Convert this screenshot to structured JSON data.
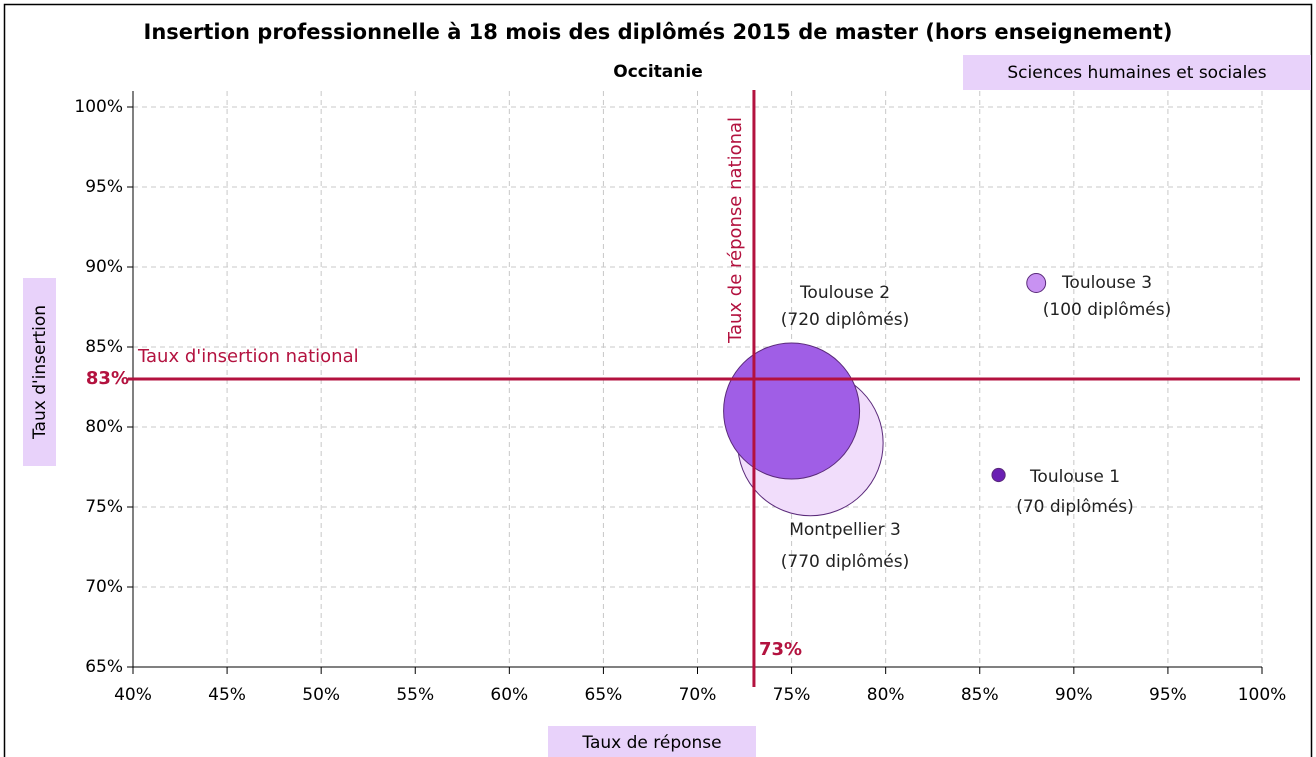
{
  "chart_data": {
    "type": "bubble",
    "title": "Insertion professionnelle à 18 mois des diplômés 2015 de master (hors enseignement)",
    "subtitle": "Occitanie",
    "tag": "Sciences humaines et sociales",
    "xlabel": "Taux de réponse",
    "ylabel": "Taux d'insertion",
    "xlim": [
      40,
      100
    ],
    "ylim": [
      65,
      101
    ],
    "xticks": [
      {
        "value": 40,
        "label": "40%"
      },
      {
        "value": 45,
        "label": "45%"
      },
      {
        "value": 50,
        "label": "50%"
      },
      {
        "value": 55,
        "label": "55%"
      },
      {
        "value": 60,
        "label": "60%"
      },
      {
        "value": 65,
        "label": "65%"
      },
      {
        "value": 70,
        "label": "70%"
      },
      {
        "value": 75,
        "label": "75%"
      },
      {
        "value": 80,
        "label": "80%"
      },
      {
        "value": 85,
        "label": "85%"
      },
      {
        "value": 90,
        "label": "90%"
      },
      {
        "value": 95,
        "label": "95%"
      },
      {
        "value": 100,
        "label": "100%"
      }
    ],
    "yticks": [
      {
        "value": 65,
        "label": "65%"
      },
      {
        "value": 70,
        "label": "70%"
      },
      {
        "value": 75,
        "label": "75%"
      },
      {
        "value": 80,
        "label": "80%"
      },
      {
        "value": 85,
        "label": "85%"
      },
      {
        "value": 90,
        "label": "90%"
      },
      {
        "value": 95,
        "label": "95%"
      },
      {
        "value": 100,
        "label": "100%"
      }
    ],
    "grid": true,
    "points": [
      {
        "name": "Montpellier 3",
        "size_label": "(770 diplômés)",
        "x": 76,
        "y": 79,
        "size": 770,
        "color": "#f1ddfb"
      },
      {
        "name": "Toulouse 2",
        "size_label": "(720 diplômés)",
        "x": 75,
        "y": 81,
        "size": 720,
        "color": "#a05ee6"
      },
      {
        "name": "Toulouse 3",
        "size_label": "(100 diplômés)",
        "x": 88,
        "y": 89,
        "size": 100,
        "color": "#c892f2"
      },
      {
        "name": "Toulouse 1",
        "size_label": "(70 diplômés)",
        "x": 86,
        "y": 77,
        "size": 70,
        "color": "#6a1fb3"
      }
    ],
    "reference_lines": [
      {
        "axis": "x",
        "value": 73,
        "label": "73%",
        "name": "Taux de réponse national",
        "color": "#b3123f"
      },
      {
        "axis": "y",
        "value": 83,
        "label": "83%",
        "name": "Taux d'insertion national",
        "color": "#b3123f"
      }
    ]
  }
}
